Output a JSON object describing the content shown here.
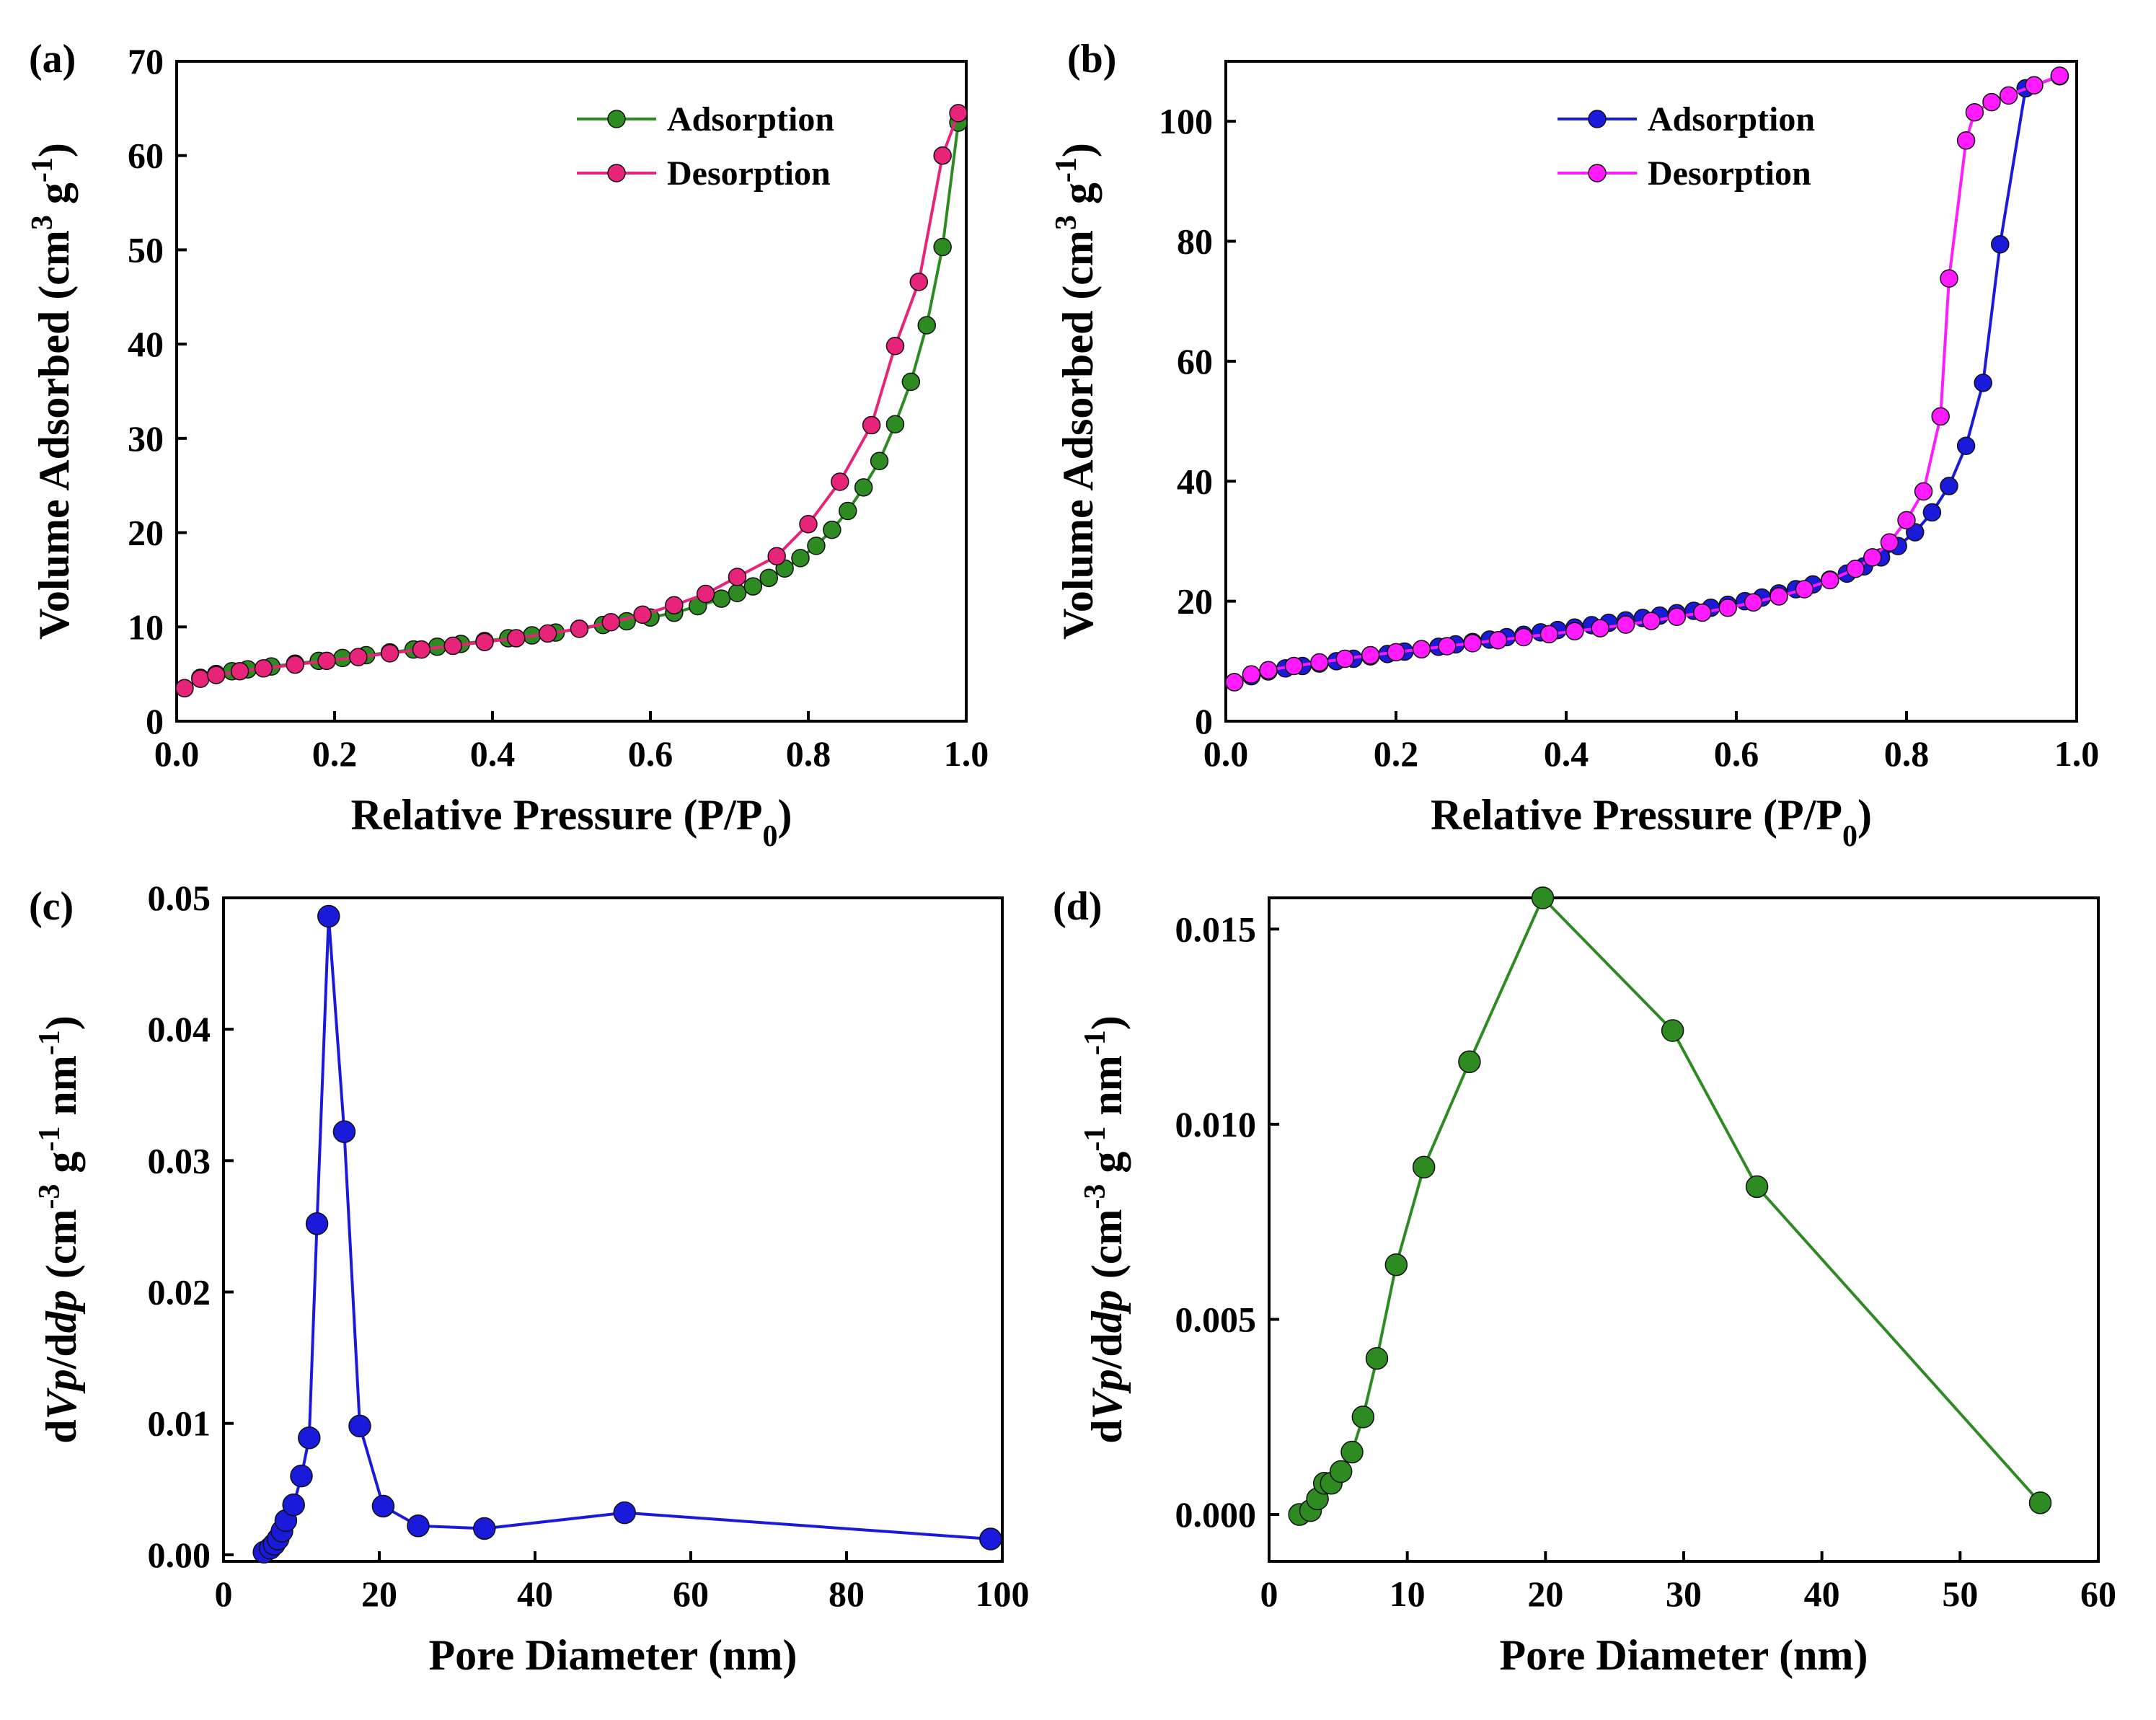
{
  "chart_data": [
    {
      "panel": "(a)",
      "type": "line",
      "xlabel": "Relative Pressure (P/P0)",
      "xlabel_parts": {
        "main": "Relative Pressure (P/P",
        "sub": "0",
        "end": ")"
      },
      "ylabel": "Volume Adsorbed (cm3 g-1)",
      "ylabel_parts": {
        "a": "Volume Adsorbed (cm",
        "sup1": "3",
        "b": " g",
        "sup2": "-1",
        "c": ")"
      },
      "xlim": [
        0.0,
        1.0
      ],
      "ylim": [
        0,
        70
      ],
      "xticks": [
        0.0,
        0.2,
        0.4,
        0.6,
        0.8,
        1.0
      ],
      "xtick_labels": [
        "0.0",
        "0.2",
        "0.4",
        "0.6",
        "0.8",
        "1.0"
      ],
      "yticks": [
        0,
        10,
        20,
        30,
        40,
        50,
        60,
        70
      ],
      "ytick_labels": [
        "0",
        "10",
        "20",
        "30",
        "40",
        "50",
        "60",
        "70"
      ],
      "legend_position": "top-right",
      "series": [
        {
          "name": "Adsorption",
          "color": "#2e8b22",
          "x": [
            0.01,
            0.03,
            0.05,
            0.07,
            0.09,
            0.12,
            0.15,
            0.18,
            0.21,
            0.24,
            0.27,
            0.3,
            0.33,
            0.36,
            0.39,
            0.42,
            0.45,
            0.48,
            0.51,
            0.54,
            0.57,
            0.6,
            0.63,
            0.66,
            0.69,
            0.71,
            0.73,
            0.75,
            0.77,
            0.79,
            0.81,
            0.83,
            0.85,
            0.87,
            0.89,
            0.91,
            0.93,
            0.95,
            0.97,
            0.99
          ],
          "y": [
            3.5,
            4.6,
            5.0,
            5.3,
            5.5,
            5.8,
            6.1,
            6.4,
            6.7,
            7.0,
            7.3,
            7.6,
            7.9,
            8.2,
            8.5,
            8.8,
            9.1,
            9.4,
            9.8,
            10.2,
            10.6,
            11.0,
            11.5,
            12.2,
            13.0,
            13.6,
            14.3,
            15.2,
            16.2,
            17.3,
            18.6,
            20.3,
            22.3,
            24.8,
            27.6,
            31.5,
            36.0,
            42.0,
            50.3,
            63.5
          ]
        },
        {
          "name": "Desorption",
          "color": "#e8237a",
          "x": [
            0.01,
            0.03,
            0.05,
            0.08,
            0.11,
            0.15,
            0.19,
            0.23,
            0.27,
            0.31,
            0.35,
            0.39,
            0.43,
            0.47,
            0.51,
            0.55,
            0.59,
            0.63,
            0.67,
            0.71,
            0.76,
            0.8,
            0.84,
            0.88,
            0.91,
            0.94,
            0.97,
            0.99
          ],
          "y": [
            3.5,
            4.5,
            4.9,
            5.3,
            5.6,
            6.0,
            6.4,
            6.8,
            7.2,
            7.6,
            8.0,
            8.4,
            8.8,
            9.3,
            9.8,
            10.5,
            11.3,
            12.3,
            13.5,
            15.3,
            17.5,
            20.9,
            25.4,
            31.4,
            39.8,
            46.6,
            60.0,
            64.5
          ]
        }
      ]
    },
    {
      "panel": "(b)",
      "type": "line",
      "xlabel": "Relative Pressure (P/P0)",
      "xlabel_parts": {
        "main": "Relative Pressure (P/P",
        "sub": "0",
        "end": ")"
      },
      "ylabel": "Volume Adsorbed (cm3 g-1)",
      "ylabel_parts": {
        "a": "Volume Adsorbed (cm",
        "sup1": "3",
        "b": " g",
        "sup2": "-1",
        "c": ")"
      },
      "xlim": [
        0.0,
        1.0
      ],
      "ylim": [
        0,
        110
      ],
      "xticks": [
        0.0,
        0.2,
        0.4,
        0.6,
        0.8,
        1.0
      ],
      "xtick_labels": [
        "0.0",
        "0.2",
        "0.4",
        "0.6",
        "0.8",
        "1.0"
      ],
      "yticks": [
        0,
        20,
        40,
        60,
        80,
        100
      ],
      "ytick_labels": [
        "0",
        "20",
        "40",
        "60",
        "80",
        "100"
      ],
      "legend_position": "top-center",
      "series": [
        {
          "name": "Adsorption",
          "color": "#1a1adb",
          "x": [
            0.01,
            0.03,
            0.05,
            0.07,
            0.09,
            0.11,
            0.13,
            0.15,
            0.17,
            0.19,
            0.21,
            0.23,
            0.25,
            0.27,
            0.29,
            0.31,
            0.33,
            0.35,
            0.37,
            0.39,
            0.41,
            0.43,
            0.45,
            0.47,
            0.49,
            0.51,
            0.53,
            0.55,
            0.57,
            0.59,
            0.61,
            0.63,
            0.65,
            0.67,
            0.69,
            0.71,
            0.73,
            0.75,
            0.77,
            0.79,
            0.81,
            0.83,
            0.85,
            0.87,
            0.89,
            0.91,
            0.94,
            0.98
          ],
          "y": [
            6.5,
            7.5,
            8.3,
            8.8,
            9.2,
            9.6,
            10.0,
            10.4,
            10.8,
            11.2,
            11.6,
            12.0,
            12.4,
            12.8,
            13.2,
            13.6,
            14.0,
            14.4,
            14.8,
            15.2,
            15.6,
            16.0,
            16.4,
            16.8,
            17.2,
            17.6,
            18.0,
            18.4,
            18.9,
            19.4,
            20.0,
            20.6,
            21.3,
            22.0,
            22.8,
            23.6,
            24.6,
            25.8,
            27.3,
            29.2,
            31.5,
            34.8,
            39.2,
            45.9,
            56.4,
            79.5,
            105.5,
            107.5
          ]
        },
        {
          "name": "Desorption",
          "color": "#ff1aff",
          "x": [
            0.01,
            0.03,
            0.05,
            0.08,
            0.11,
            0.14,
            0.17,
            0.2,
            0.23,
            0.26,
            0.29,
            0.32,
            0.35,
            0.38,
            0.41,
            0.44,
            0.47,
            0.5,
            0.53,
            0.56,
            0.59,
            0.62,
            0.65,
            0.68,
            0.71,
            0.74,
            0.76,
            0.78,
            0.8,
            0.82,
            0.84,
            0.85,
            0.87,
            0.88,
            0.9,
            0.92,
            0.95,
            0.98
          ],
          "y": [
            6.5,
            7.8,
            8.5,
            9.2,
            9.8,
            10.4,
            11.0,
            11.5,
            12.0,
            12.5,
            13.0,
            13.5,
            14.0,
            14.5,
            15.0,
            15.5,
            16.1,
            16.7,
            17.4,
            18.1,
            18.9,
            19.8,
            20.8,
            22.0,
            23.5,
            25.4,
            27.3,
            29.8,
            33.5,
            38.3,
            50.8,
            73.8,
            96.8,
            101.5,
            103.2,
            104.3,
            106.0,
            107.6
          ]
        }
      ]
    },
    {
      "panel": "(c)",
      "type": "line",
      "xlabel": "Pore Diameter (nm)",
      "ylabel": "dVp/ddp (cm-3 g-1 nm-1)",
      "ylabel_parts": {
        "d1": "d",
        "v": "Vp",
        "slash": "/d",
        "dp": "dp",
        "a": " (cm",
        "sup1": "-3",
        "b": " g",
        "sup2": "-1",
        "c": " nm",
        "sup3": "-1",
        "e": ")"
      },
      "xlim": [
        0,
        100
      ],
      "ylim": [
        -0.0005,
        0.05
      ],
      "xticks": [
        0,
        20,
        40,
        60,
        80,
        100
      ],
      "xtick_labels": [
        "0",
        "20",
        "40",
        "60",
        "80",
        "100"
      ],
      "yticks": [
        0.0,
        0.01,
        0.02,
        0.03,
        0.04,
        0.05
      ],
      "ytick_labels": [
        "0.00",
        "0.01",
        "0.02",
        "0.03",
        "0.04",
        "0.05"
      ],
      "series": [
        {
          "color": "#1a1adb",
          "x": [
            5.2,
            6.0,
            6.5,
            7.0,
            7.5,
            8.0,
            9.0,
            10.0,
            11.0,
            12.0,
            13.5,
            15.5,
            17.5,
            20.5,
            25.0,
            33.5,
            51.5,
            98.5
          ],
          "y": [
            0.0002,
            0.0005,
            0.0008,
            0.0012,
            0.0018,
            0.0026,
            0.0038,
            0.006,
            0.0089,
            0.0252,
            0.0486,
            0.0322,
            0.0098,
            0.0037,
            0.0022,
            0.002,
            0.0032,
            0.0012
          ]
        }
      ]
    },
    {
      "panel": "(d)",
      "type": "line",
      "xlabel": "Pore Diameter (nm)",
      "ylabel": "dVp/ddp (cm-3 g-1 nm-1)",
      "ylabel_parts": {
        "d1": "d",
        "v": "Vp",
        "slash": "/d",
        "dp": "dp",
        "a": " (cm",
        "sup1": "-3",
        "b": " g",
        "sup2": "-1",
        "c": " nm",
        "sup3": "-1",
        "e": ")"
      },
      "xlim": [
        0,
        60
      ],
      "ylim": [
        -0.0012,
        0.0158
      ],
      "xticks": [
        0,
        10,
        20,
        30,
        40,
        50,
        60
      ],
      "xtick_labels": [
        "0",
        "10",
        "20",
        "30",
        "40",
        "50",
        "60"
      ],
      "yticks": [
        0.0,
        0.005,
        0.01,
        0.015
      ],
      "ytick_labels": [
        "0.000",
        "0.005",
        "0.010",
        "0.015"
      ],
      "series": [
        {
          "color": "#2e8b22",
          "x": [
            2.2,
            3.0,
            3.5,
            4.0,
            4.5,
            5.2,
            6.0,
            6.8,
            7.8,
            9.2,
            11.2,
            14.5,
            19.8,
            29.2,
            35.3,
            55.8
          ],
          "y": [
            0.0,
            0.0001,
            0.0004,
            0.0008,
            0.0008,
            0.0011,
            0.0016,
            0.0025,
            0.004,
            0.0064,
            0.0089,
            0.0116,
            0.0158,
            0.0124,
            0.0084,
            0.0003
          ]
        }
      ]
    }
  ]
}
